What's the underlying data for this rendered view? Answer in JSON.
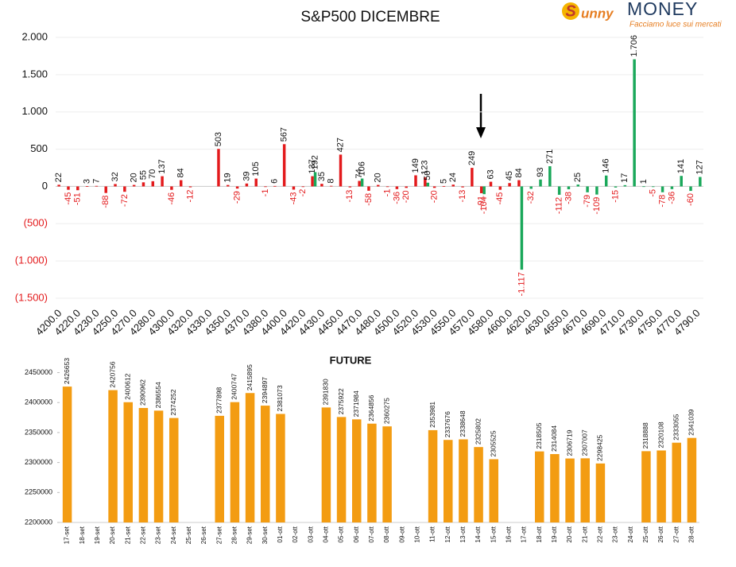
{
  "logo": {
    "prefix": "unny",
    "brand": "MONEY",
    "tagline": "Facciamo luce sui mercati"
  },
  "chart_data": [
    {
      "type": "bar",
      "title": "S&P500 DICEMBRE",
      "categories": [
        "4200.0",
        null,
        "4220.0",
        null,
        "4230.0",
        null,
        "4250.0",
        null,
        "4270.0",
        null,
        "4280.0",
        null,
        "4300.0",
        null,
        "4320.0",
        null,
        "4330.0",
        null,
        "4350.0",
        null,
        "4370.0",
        null,
        "4380.0",
        null,
        "4400.0",
        null,
        "4420.0",
        null,
        "4430.0",
        null,
        "4450.0",
        null,
        "4470.0",
        null,
        "4480.0",
        null,
        "4500.0",
        null,
        "4520.0",
        null,
        "4530.0",
        null,
        "4550.0",
        null,
        "4570.0",
        null,
        "4580.0",
        null,
        "4600.0",
        null,
        "4620.0",
        null,
        "4630.0",
        null,
        "4650.0",
        null,
        "4670.0",
        null,
        "4690.0",
        null,
        "4710.0",
        null,
        "4730.0",
        null,
        "4750.0",
        null,
        "4770.0",
        null,
        "4790.0"
      ],
      "series": [
        {
          "color": "#e31a1c",
          "values": [
            22,
            -45,
            -51,
            3,
            7,
            -88,
            32,
            -72,
            20,
            55,
            70,
            137,
            -46,
            84,
            -12,
            null,
            null,
            503,
            19,
            -29,
            39,
            105,
            -1,
            6,
            567,
            -43,
            -2,
            137,
            35,
            8,
            427,
            -13,
            74,
            -58,
            20,
            -1,
            -36,
            -20,
            149,
            123,
            -20,
            5,
            24,
            -13,
            249,
            -91,
            63,
            -45,
            45,
            84,
            null,
            null,
            null,
            null,
            null,
            null,
            null,
            null,
            null,
            null,
            null,
            null,
            null,
            null,
            null,
            null,
            null,
            null,
            null
          ]
        },
        {
          "color": "#1aa85a",
          "values": [
            null,
            null,
            null,
            null,
            null,
            null,
            null,
            null,
            null,
            null,
            null,
            null,
            null,
            null,
            null,
            null,
            null,
            null,
            null,
            null,
            null,
            null,
            null,
            null,
            null,
            null,
            null,
            192,
            null,
            null,
            null,
            null,
            106,
            null,
            null,
            null,
            null,
            null,
            null,
            50,
            null,
            null,
            null,
            null,
            null,
            -104,
            null,
            null,
            null,
            -1117,
            -32,
            93,
            271,
            -112,
            -38,
            25,
            -79,
            -109,
            146,
            -15,
            17,
            1706,
            1,
            -5,
            -78,
            -36,
            141,
            -60,
            127
          ],
          "value_labels": [
            null,
            null,
            null,
            null,
            null,
            null,
            null,
            null,
            null,
            null,
            null,
            null,
            null,
            null,
            null,
            null,
            null,
            null,
            null,
            null,
            null,
            null,
            null,
            null,
            null,
            null,
            null,
            "192",
            null,
            null,
            null,
            null,
            "106",
            null,
            null,
            null,
            null,
            null,
            null,
            "50",
            null,
            null,
            null,
            null,
            null,
            "-104",
            null,
            null,
            null,
            "-1.117",
            "-32",
            "93",
            "271",
            "-112",
            "-38",
            "25",
            "-79",
            "-109",
            "146",
            "-15",
            "17",
            "1.706",
            "1",
            "-5",
            "-78",
            "-36",
            "141",
            "-60",
            "127"
          ]
        }
      ],
      "ylim": [
        -1500,
        2000
      ],
      "yticks": [
        {
          "value": 2000,
          "label": "2.000"
        },
        {
          "value": 1500,
          "label": "1.500"
        },
        {
          "value": 1000,
          "label": "1.000"
        },
        500,
        0,
        {
          "value": -500,
          "label": "(500)"
        },
        {
          "value": -1000,
          "label": "(1.000)"
        },
        {
          "value": -1500,
          "label": "(1.500)"
        }
      ],
      "negative_color": "#e31a1c",
      "grid": true
    },
    {
      "type": "bar",
      "title": "FUTURE",
      "color": "#f39c12",
      "categories": [
        "17-set",
        "18-set",
        "19-set",
        "20-set",
        "21-set",
        "22-set",
        "23-set",
        "24-set",
        "25-set",
        "26-set",
        "27-set",
        "28-set",
        "29-set",
        "30-set",
        "01-ott",
        "02-ott",
        "03-ott",
        "04-ott",
        "05-ott",
        "06-ott",
        "07-ott",
        "08-ott",
        "09-ott",
        "10-ott",
        "11-ott",
        "12-ott",
        "13-ott",
        "14-ott",
        "15-ott",
        "16-ott",
        "17-ott",
        "18-ott",
        "19-ott",
        "20-ott",
        "21-ott",
        "22-ott",
        "23-ott",
        "24-ott",
        "25-ott",
        "26-ott",
        "27-ott",
        "28-ott"
      ],
      "values": [
        2426653,
        null,
        null,
        2420756,
        2400612,
        2390962,
        2386554,
        2374252,
        null,
        null,
        2377898,
        2400747,
        2415895,
        2394897,
        2381073,
        null,
        null,
        2391830,
        2375922,
        2371984,
        2364856,
        2360275,
        null,
        null,
        2353981,
        2337676,
        2338648,
        2325802,
        2305525,
        null,
        null,
        2318505,
        2314084,
        2306719,
        2307007,
        2298425,
        null,
        null,
        2318888,
        2320108,
        2333055,
        2341039
      ],
      "ylim": [
        2200000,
        2460000
      ],
      "yticks": [
        2200000,
        2250000,
        2300000,
        2350000,
        2400000,
        2450000
      ],
      "grid": false
    }
  ]
}
